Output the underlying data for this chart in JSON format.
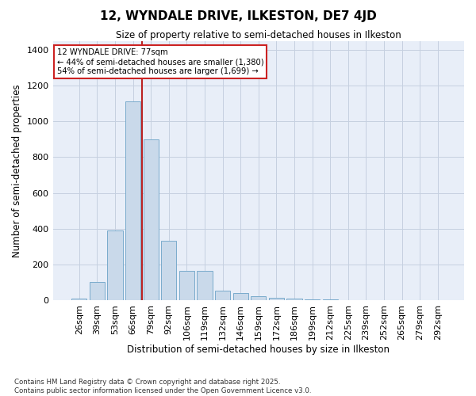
{
  "title": "12, WYNDALE DRIVE, ILKESTON, DE7 4JD",
  "subtitle": "Size of property relative to semi-detached houses in Ilkeston",
  "xlabel": "Distribution of semi-detached houses by size in Ilkeston",
  "ylabel": "Number of semi-detached properties",
  "bar_color": "#c9d9ea",
  "bar_edge_color": "#7aabcc",
  "grid_color": "#c5d0e0",
  "bg_color": "#e8eef8",
  "vline_color": "#bb2222",
  "annotation_title": "12 WYNDALE DRIVE: 77sqm",
  "annotation_line1": "← 44% of semi-detached houses are smaller (1,380)",
  "annotation_line2": "54% of semi-detached houses are larger (1,699) →",
  "annotation_box_edge": "#cc2222",
  "categories": [
    "26sqm",
    "39sqm",
    "53sqm",
    "66sqm",
    "79sqm",
    "92sqm",
    "106sqm",
    "119sqm",
    "132sqm",
    "146sqm",
    "159sqm",
    "172sqm",
    "186sqm",
    "199sqm",
    "212sqm",
    "225sqm",
    "239sqm",
    "252sqm",
    "265sqm",
    "279sqm",
    "292sqm"
  ],
  "values": [
    10,
    100,
    390,
    1110,
    900,
    330,
    165,
    165,
    55,
    40,
    20,
    15,
    10,
    5,
    5,
    2,
    2,
    0,
    0,
    0,
    0
  ],
  "ylim": [
    0,
    1450
  ],
  "yticks": [
    0,
    200,
    400,
    600,
    800,
    1000,
    1200,
    1400
  ],
  "vline_pos": 3.5,
  "footnote": "Contains HM Land Registry data © Crown copyright and database right 2025.\nContains public sector information licensed under the Open Government Licence v3.0."
}
